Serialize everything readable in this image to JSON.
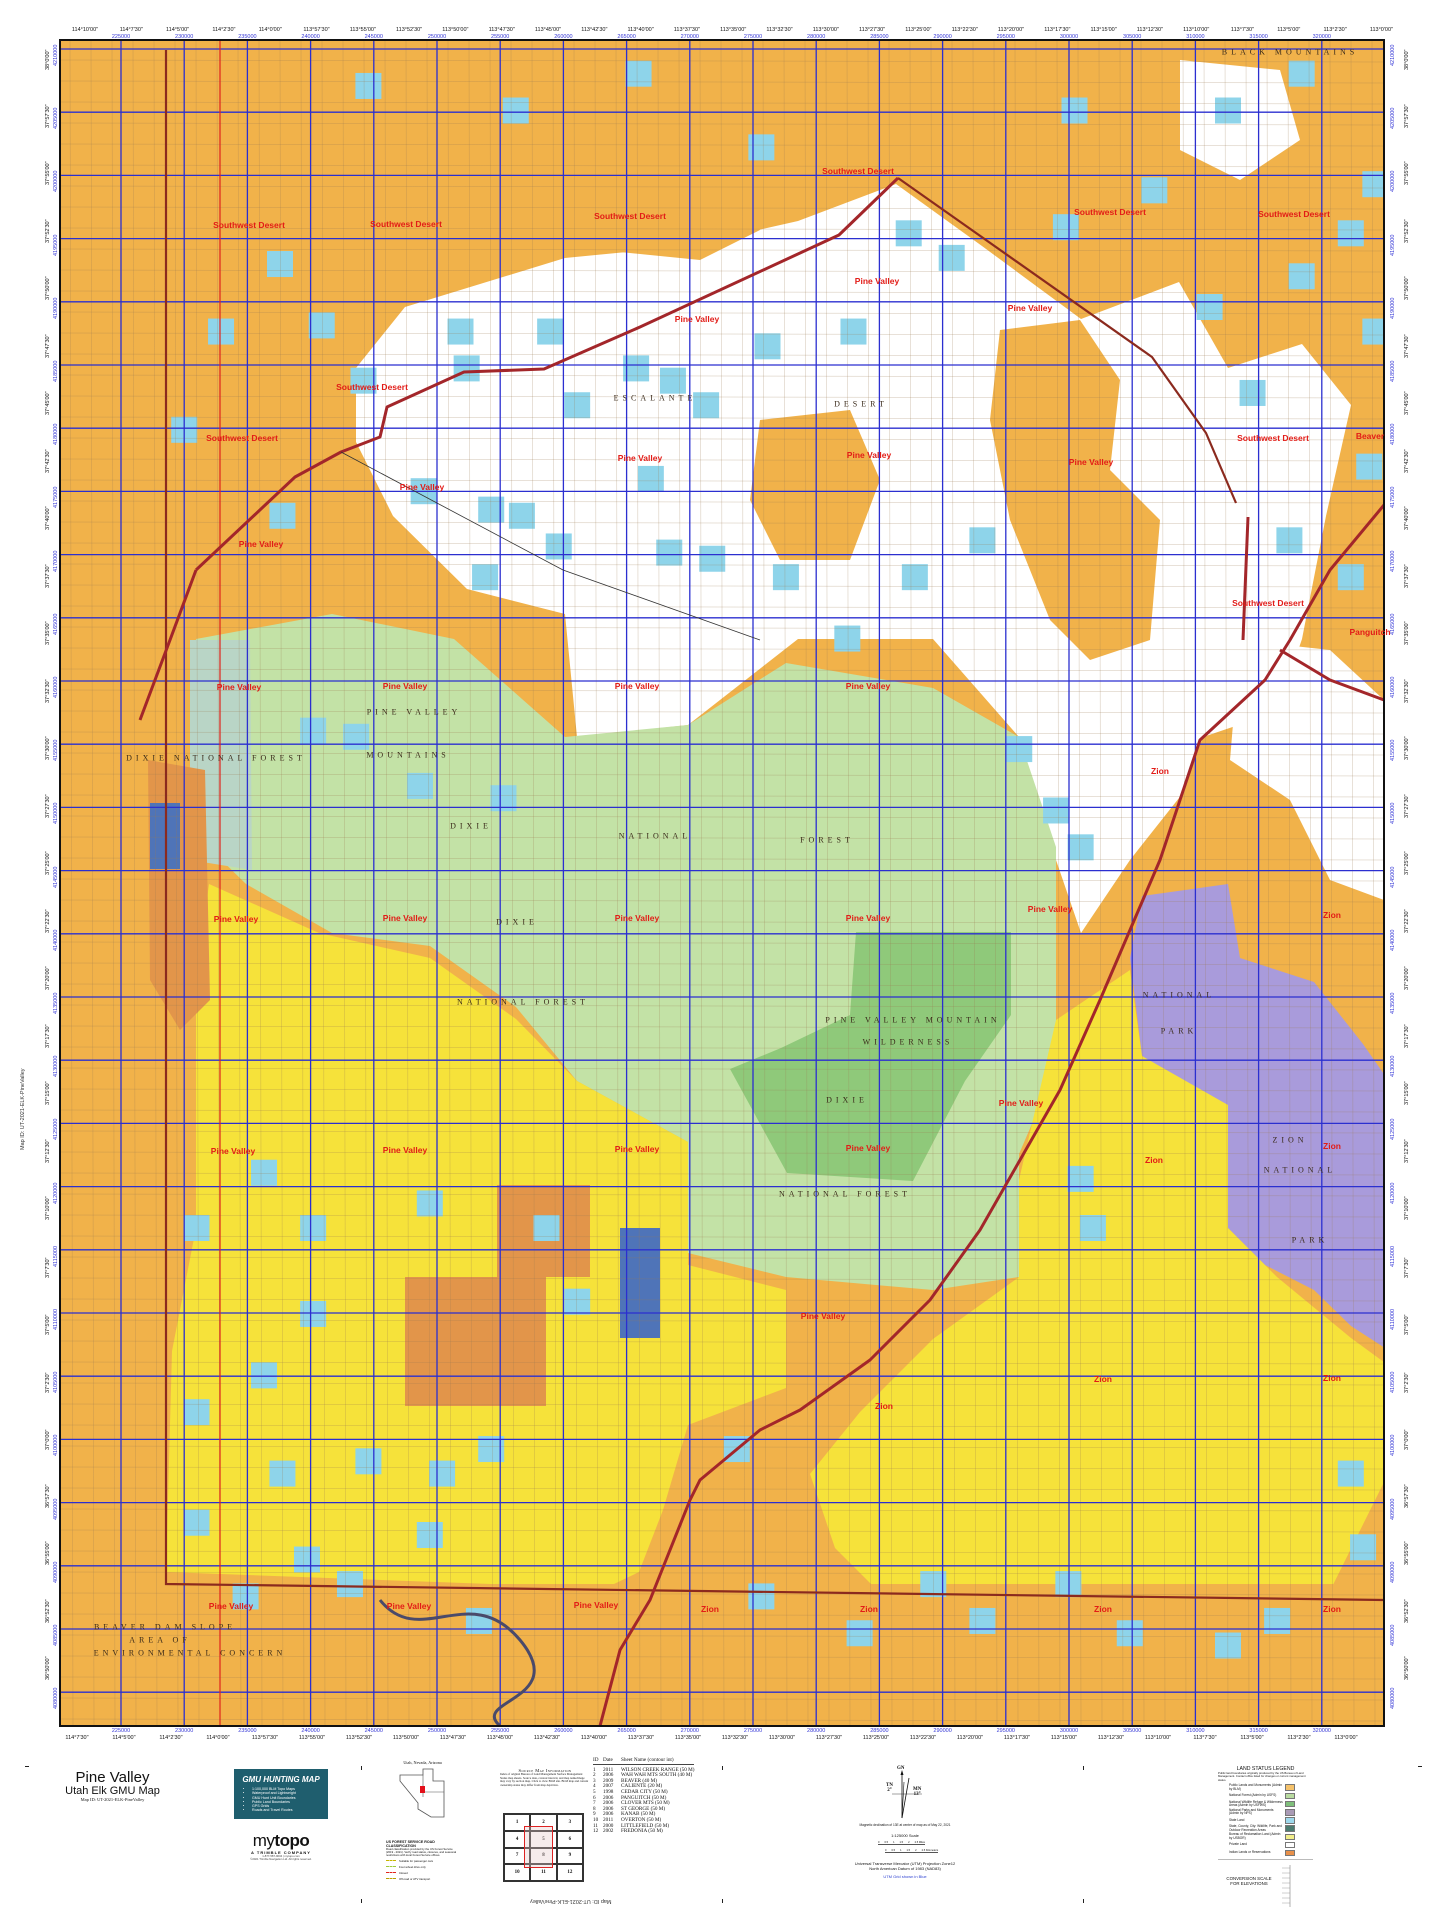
{
  "map": {
    "title": "Pine Valley",
    "subtitle": "Utah Elk GMU Map",
    "map_id": "Map ID: UT-2021-ELK-PineValley",
    "unit_labels": [
      "Southwest Desert",
      "Southwest Desert",
      "Southwest Desert",
      "Southwest Desert",
      "Southwest Desert",
      "Southwest Desert",
      "Pine Valley",
      "Pine Valley",
      "Pine Valley",
      "Southwest Desert",
      "Southwest Desert",
      "Southwest Desert",
      "Pine Valley",
      "Pine Valley",
      "Pine Valley",
      "Pine Valley",
      "Pine Valley",
      "Beaver",
      "Southwest Desert",
      "Panguitch",
      "Pine Valley",
      "Pine Valley",
      "Pine Valley",
      "Pine Valley",
      "Pine Valley",
      "Pine Valley",
      "Pine Valley",
      "Pine Valley",
      "Pine Valley",
      "Pine Valley",
      "Pine Valley",
      "Pine Valley",
      "Pine Valley",
      "Pine Valley",
      "Pine Valley",
      "Pine Valley",
      "Pine Valley",
      "Pine Valley",
      "Zion",
      "Zion",
      "Zion",
      "Zion",
      "Zion",
      "Zion",
      "Zion",
      "Zion",
      "Zion",
      "Zion",
      "Zion"
    ],
    "feature_labels": [
      "ESCALANTE",
      "DESERT",
      "BLACK MOUNTAINS",
      "PINE VALLEY",
      "MOUNTAINS",
      "DIXIE NATIONAL FOREST",
      "DIXIE",
      "NATIONAL",
      "FOREST",
      "DIXIE",
      "NATIONAL FOREST",
      "PINE VALLEY MOUNTAIN",
      "WILDERNESS",
      "DIXIE",
      "NATIONAL FOREST",
      "NATIONAL",
      "PARK",
      "ZION",
      "NATIONAL",
      "PARK",
      "BEAVER DAM SLOPE",
      "AREA OF",
      "ENVIRONMENTAL CONCERN"
    ]
  },
  "margins": {
    "top_longitudes": [
      "114°10'00\"",
      "114°7'30\"",
      "114°5'00\"",
      "114°2'30\"",
      "114°0'00\"",
      "113°57'30\"",
      "113°55'00\"",
      "113°52'30\"",
      "113°50'00\"",
      "113°47'30\"",
      "113°45'00\"",
      "113°42'30\"",
      "113°40'00\"",
      "113°37'30\"",
      "113°35'00\"",
      "113°32'30\"",
      "113°30'00\"",
      "113°27'30\"",
      "113°25'00\"",
      "113°22'30\"",
      "113°20'00\"",
      "113°17'30\"",
      "113°15'00\"",
      "113°12'30\"",
      "113°10'00\"",
      "113°7'30\"",
      "113°5'00\"",
      "113°2'30\"",
      "113°0'00\""
    ],
    "bottom_longitudes": [
      "114°7'30\"",
      "114°5'00\"",
      "114°2'30\"",
      "114°0'00\"",
      "113°57'30\"",
      "113°55'00\"",
      "113°52'30\"",
      "113°50'00\"",
      "113°47'30\"",
      "113°45'00\"",
      "113°42'30\"",
      "113°40'00\"",
      "113°37'30\"",
      "113°35'00\"",
      "113°32'30\"",
      "113°30'00\"",
      "113°27'30\"",
      "113°25'00\"",
      "113°22'30\"",
      "113°20'00\"",
      "113°17'30\"",
      "113°15'00\"",
      "113°12'30\"",
      "113°10'00\"",
      "113°7'30\"",
      "113°5'00\"",
      "113°2'30\"",
      "113°0'00\""
    ],
    "eastings": [
      "225000",
      "230000",
      "235000",
      "240000",
      "245000",
      "250000",
      "255000",
      "260000",
      "265000",
      "270000",
      "275000",
      "280000",
      "285000",
      "290000",
      "295000",
      "300000",
      "305000",
      "310000",
      "315000",
      "320000"
    ],
    "northings": [
      "4210000",
      "4205000",
      "4200000",
      "4195000",
      "4190000",
      "4185000",
      "4180000",
      "4175000",
      "4170000",
      "4165000",
      "4160000",
      "4155000",
      "4150000",
      "4145000",
      "4140000",
      "4135000",
      "4130000",
      "4125000",
      "4120000",
      "4115000",
      "4110000",
      "4105000",
      "4100000",
      "4095000",
      "4090000",
      "4085000",
      "4080000"
    ],
    "latitudes": [
      "38°0'00\"",
      "37°57'30\"",
      "37°55'00\"",
      "37°52'30\"",
      "37°50'00\"",
      "37°47'30\"",
      "37°45'00\"",
      "37°42'30\"",
      "37°40'00\"",
      "37°37'30\"",
      "37°35'00\"",
      "37°32'30\"",
      "37°30'00\"",
      "37°27'30\"",
      "37°25'00\"",
      "37°22'30\"",
      "37°20'00\"",
      "37°17'30\"",
      "37°15'00\"",
      "37°12'30\"",
      "37°10'00\"",
      "37°7'30\"",
      "37°5'00\"",
      "37°2'30\"",
      "37°0'00\"",
      "36°57'30\"",
      "36°55'00\"",
      "36°52'30\"",
      "36°50'00\""
    ],
    "side_map_id": "Map ID: UT-2021-ELK-PineValley"
  },
  "gmu_box": {
    "heading": "GMU HUNTING MAP",
    "bullets": [
      "1:100,000 BLM Topo Maps",
      "Waterproof and Lightweight",
      "GMU Hunt Unit Boundaries",
      "Public Land Boundaries",
      "GPS Grids",
      "Roads and Travel Routes"
    ]
  },
  "brand": {
    "logo_my": "my",
    "logo_topo": "topo",
    "company": "A TRIMBLE COMPANY",
    "address": "1-877-587-9004 | mytopo.com",
    "copyright": "©2021 Trimble Navigation Ltd. All rights reserved."
  },
  "locator": {
    "title": "Utah, Nevada, Arizona"
  },
  "road_classification": {
    "title": "US FOREST SERVICE ROAD CLASSIFICATION",
    "note": "Road classification provided by the US Forest Service (2019 - 2021). Verify road status, closures, and seasonal restrictions with local Forest Service offices.",
    "items": [
      {
        "label": "Suitable for passenger cars",
        "color": "#C8B400"
      },
      {
        "label": "Four-wheel drive only",
        "color": "#9FCB3A"
      },
      {
        "label": "Closed",
        "color": "#E0231C"
      },
      {
        "label": "Off-road or ATV transport",
        "color": "#B9A100"
      }
    ]
  },
  "source_index": {
    "title": "Source Map Information",
    "text": "Index of original Bureau of Land Management Surface Management Status map sheets. Source date, contour interval, and map name/image may vary by section map. Click to view BLM site. BLM map and current ownership status may differ from map depiction.",
    "cells": [
      "1",
      "2",
      "3",
      "4",
      "5",
      "6",
      "7",
      "8",
      "9",
      "10",
      "11",
      "12"
    ],
    "header": {
      "id": "ID",
      "date": "Date",
      "name": "Sheet Name (contour int)"
    },
    "sheets": [
      {
        "id": "1",
        "date": "2011",
        "name": "WILSON CREEK RANGE (50 M)"
      },
      {
        "id": "2",
        "date": "2006",
        "name": "WAH WAH MTS SOUTH (40 M)"
      },
      {
        "id": "3",
        "date": "2009",
        "name": "BEAVER (40 M)"
      },
      {
        "id": "4",
        "date": "2007",
        "name": "CALIENTE (20 M)"
      },
      {
        "id": "5",
        "date": "1998",
        "name": "CEDAR CITY (50 M)"
      },
      {
        "id": "6",
        "date": "2006",
        "name": "PANGUITCH (50 M)"
      },
      {
        "id": "7",
        "date": "2006",
        "name": "CLOVER MTS (50 M)"
      },
      {
        "id": "8",
        "date": "2006",
        "name": "ST GEORGE (50 M)"
      },
      {
        "id": "9",
        "date": "2006",
        "name": "KANAB (50 M)"
      },
      {
        "id": "10",
        "date": "2011",
        "name": "OVERTON (50 M)"
      },
      {
        "id": "11",
        "date": "2000",
        "name": "LITTLEFIELD (50 M)"
      },
      {
        "id": "12",
        "date": "2002",
        "name": "FREDONIA (50 M)"
      }
    ]
  },
  "compass": {
    "gn": "GN",
    "tn": "TN",
    "tn_deg": "2°",
    "mn": "MN",
    "mn_deg": "13°"
  },
  "scale": {
    "declination": "Magnetic declination of 13E at center of map as of May 22, 2021",
    "ratio": "1:125000 Scale",
    "miles": [
      "0",
      "0.5",
      "1",
      "1.5",
      "2",
      "2.5 Miles"
    ],
    "km": [
      "0",
      "0.5",
      "1",
      "1.5",
      "2",
      "2.5 Kilometers"
    ],
    "projection": "Universal Transverse Mercator (UTM) Projection Zone12",
    "datum": "North American Datum of 1983 (NAD83)",
    "grid_note": "UTM Grid shown in Blue"
  },
  "legend": {
    "title": "LAND STATUS LEGEND",
    "intro": "Public land boundaries originally produced by the US Bureau of Land Management. Contact office listed for changes or current management status.",
    "items": [
      {
        "label": "Public Lands and Monuments (Admin by BLM)",
        "color": "#F5C26B"
      },
      {
        "label": "National Forest (Admin by USFS)",
        "color": "#B9DBA0"
      },
      {
        "label": "National Wildlife Refuge & Wilderness Areas (Admin by USFWS)",
        "color": "#7FBF7B"
      },
      {
        "label": "National Parks and Monuments (Admin by NPS)",
        "color": "#A99AB5"
      },
      {
        "label": "State Land",
        "color": "#9ED8EC"
      },
      {
        "label": "State, County, City: Wildlife, Park and Outdoor Recreation Areas",
        "color": "#4C7C70"
      },
      {
        "label": "Bureau of Reclamation Land (Admin by USBOR)",
        "color": "#F2EE8A"
      },
      {
        "label": "Private Land",
        "color": "#FFFFFF"
      },
      {
        "label": "Indian Lands or Reservations",
        "color": "#E8904A"
      }
    ],
    "conversion_title": "CONVERSION SCALE FOR ELEVATIONS"
  }
}
